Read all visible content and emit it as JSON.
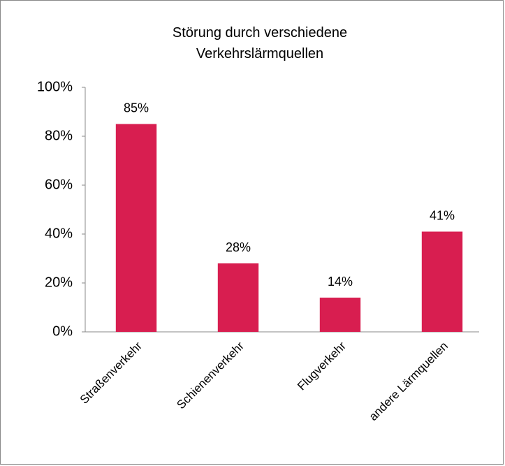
{
  "chart_data": {
    "type": "bar",
    "title": "Störung durch verschiedene Verkehrslärmquellen",
    "categories": [
      "Straßenverkehr",
      "Schienenverkehr",
      "Flugverkehr",
      "andere Lärmquellen"
    ],
    "values": [
      85,
      28,
      14,
      41
    ],
    "value_labels": [
      "85%",
      "28%",
      "14%",
      "41%"
    ],
    "color": "#d81e50",
    "ylim": [
      0,
      100
    ],
    "yticks": [
      {
        "value": 0,
        "label": "0%"
      },
      {
        "value": 20,
        "label": "20%"
      },
      {
        "value": 40,
        "label": "40%"
      },
      {
        "value": 60,
        "label": "60%"
      },
      {
        "value": 80,
        "label": "80%"
      },
      {
        "value": 100,
        "label": "100%"
      }
    ],
    "grid": false
  }
}
